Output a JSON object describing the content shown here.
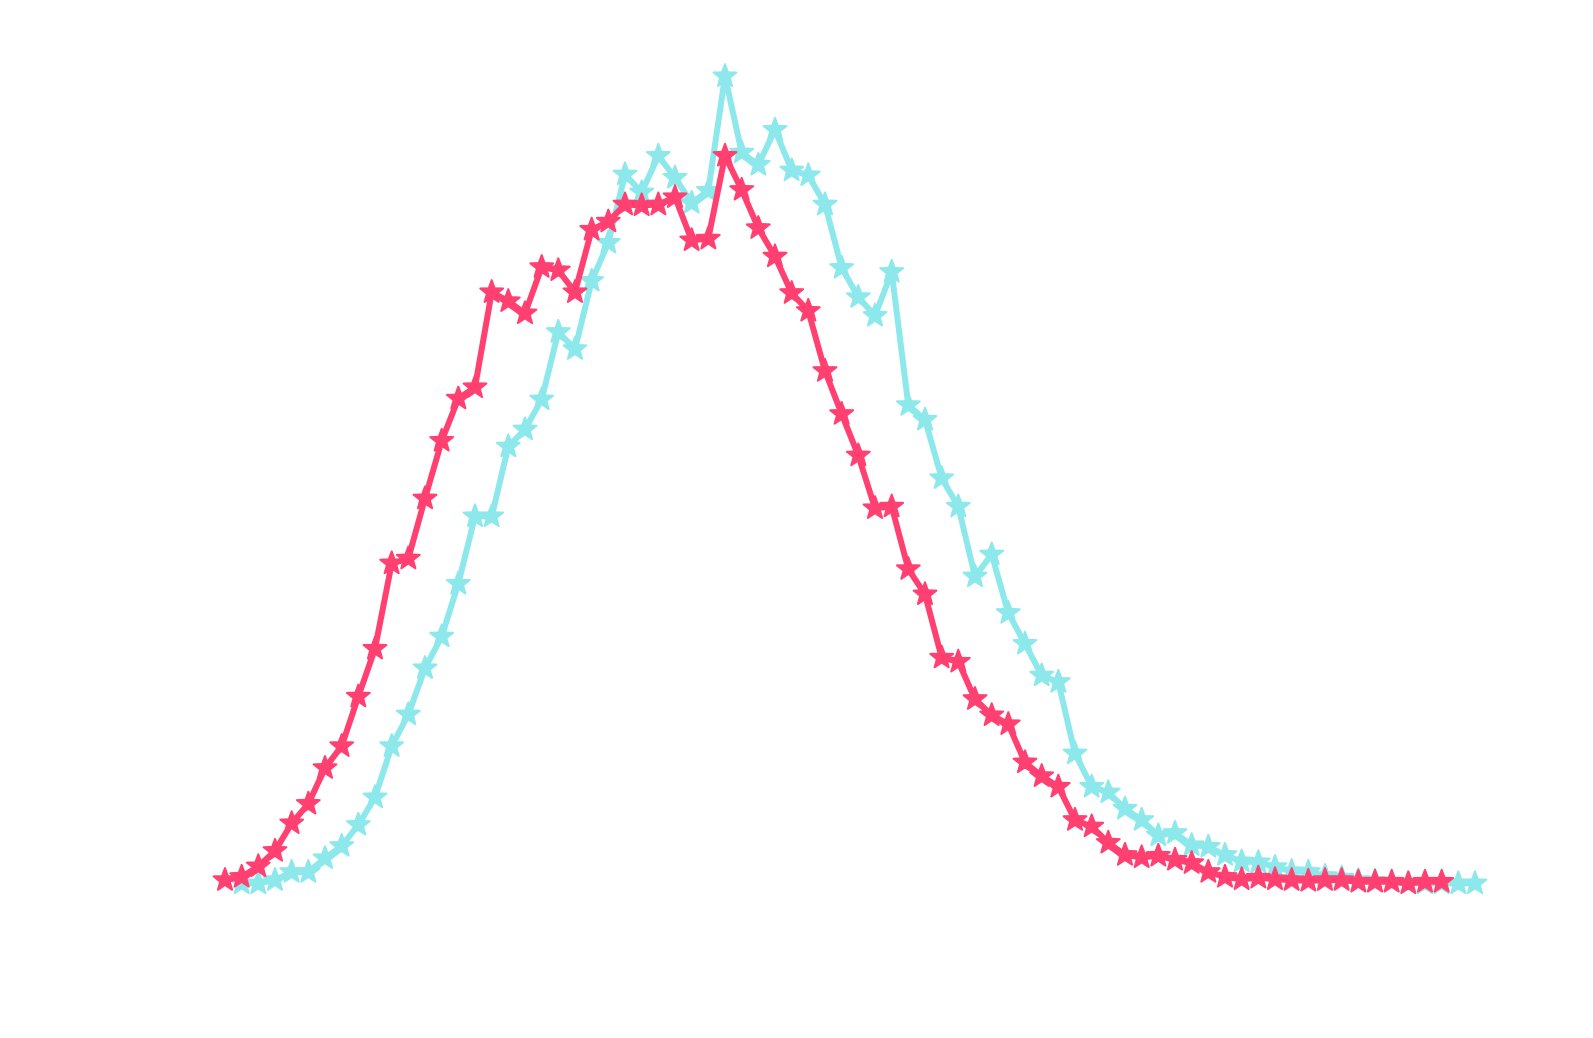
{
  "chart_data": {
    "type": "line",
    "marker": "star",
    "xlim": [
      0,
      75
    ],
    "ylim": [
      0,
      100
    ],
    "series": [
      {
        "color": "#8de8ec",
        "x": [
          1,
          2,
          3,
          4,
          5,
          6,
          7,
          8,
          9,
          10,
          11,
          12,
          13,
          14,
          15,
          16,
          17,
          18,
          19,
          20,
          21,
          22,
          23,
          24,
          25,
          26,
          27,
          28,
          29,
          30,
          31,
          32,
          33,
          34,
          35,
          36,
          37,
          38,
          39,
          40,
          41,
          42,
          43,
          44,
          45,
          46,
          47,
          48,
          49,
          50,
          51,
          52,
          53,
          54,
          55,
          56,
          57,
          58,
          59,
          60,
          61,
          62,
          63,
          64,
          65,
          66,
          67,
          68,
          69,
          70,
          71,
          72,
          73,
          74,
          75
        ],
        "values": [
          0.2,
          0.2,
          0.6,
          1.6,
          1.6,
          3.3,
          4.8,
          7.4,
          10.8,
          17.1,
          21.0,
          26.7,
          30.6,
          37.1,
          45.4,
          45.4,
          54.0,
          56.1,
          59.8,
          68.1,
          66.0,
          74.4,
          79.1,
          87.5,
          85.3,
          89.8,
          87.1,
          84.0,
          85.5,
          99.6,
          90.2,
          88.7,
          93.0,
          88.0,
          87.4,
          83.8,
          76.0,
          72.4,
          70.1,
          75.5,
          59.1,
          57.3,
          50.1,
          46.6,
          38.0,
          40.7,
          33.5,
          29.7,
          25.8,
          25.0,
          16.2,
          12.1,
          11.4,
          9.4,
          8.0,
          6.1,
          6.4,
          4.9,
          4.7,
          3.7,
          2.9,
          2.8,
          2.2,
          1.7,
          1.6,
          1.1,
          0.9,
          0.6,
          0.5,
          0.4,
          0.2,
          0.2,
          0.2,
          0.2,
          0.2
        ]
      },
      {
        "color": "#ff4070",
        "x": [
          0,
          1,
          2,
          3,
          4,
          5,
          6,
          7,
          8,
          9,
          10,
          11,
          12,
          13,
          14,
          15,
          16,
          17,
          18,
          19,
          20,
          21,
          22,
          23,
          24,
          25,
          26,
          27,
          28,
          29,
          30,
          31,
          32,
          33,
          34,
          35,
          36,
          37,
          38,
          39,
          40,
          41,
          42,
          43,
          44,
          45,
          46,
          47,
          48,
          49,
          50,
          51,
          52,
          53,
          54,
          55,
          56,
          57,
          58,
          59,
          60,
          61,
          62,
          63,
          64,
          65,
          66,
          67,
          68,
          69,
          70,
          71,
          72,
          73
        ],
        "values": [
          0.6,
          1.0,
          2.3,
          4.2,
          7.6,
          10.0,
          14.4,
          17.1,
          23.2,
          29.1,
          39.6,
          40.2,
          47.6,
          54.7,
          59.9,
          61.3,
          73.0,
          71.9,
          70.4,
          76.1,
          75.7,
          73.0,
          80.7,
          81.7,
          83.8,
          83.7,
          83.8,
          84.7,
          79.4,
          79.6,
          89.8,
          85.6,
          80.9,
          77.4,
          72.9,
          70.7,
          63.3,
          58.0,
          52.9,
          46.4,
          46.6,
          38.9,
          35.8,
          28.0,
          27.5,
          22.9,
          20.9,
          19.8,
          15.1,
          13.4,
          12.1,
          8.0,
          7.2,
          5.2,
          3.7,
          3.4,
          3.6,
          3.1,
          2.7,
          1.6,
          1.0,
          0.7,
          0.9,
          0.7,
          0.6,
          0.5,
          0.6,
          0.6,
          0.4,
          0.4,
          0.4,
          0.2,
          0.4,
          0.4
        ]
      }
    ]
  }
}
